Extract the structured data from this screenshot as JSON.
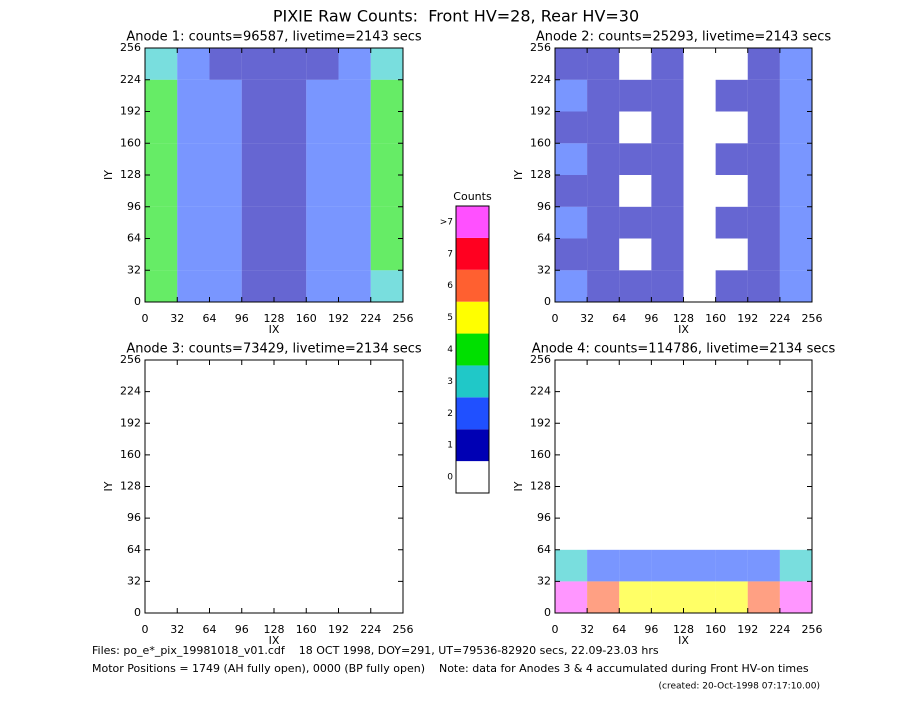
{
  "title": "PIXIE Raw Counts:  Front HV=28, Rear HV=30",
  "chart_data": [
    {
      "type": "heatmap",
      "title": "Anode 1: counts=96587, livetime=2143 secs",
      "xlabel": "IX",
      "ylabel": "IY",
      "xlim": [
        0,
        256
      ],
      "ylim": [
        0,
        256
      ],
      "xticks": [
        0,
        32,
        64,
        96,
        128,
        160,
        192,
        224,
        256
      ],
      "yticks": [
        0,
        32,
        64,
        96,
        128,
        160,
        192,
        224,
        256
      ],
      "z": [
        [
          4,
          2,
          2,
          1,
          1,
          2,
          2,
          3
        ],
        [
          4,
          2,
          2,
          1,
          1,
          2,
          2,
          4
        ],
        [
          4,
          2,
          2,
          1,
          1,
          2,
          2,
          4
        ],
        [
          4,
          2,
          2,
          1,
          1,
          2,
          2,
          4
        ],
        [
          4,
          2,
          2,
          1,
          1,
          2,
          2,
          4
        ],
        [
          4,
          2,
          2,
          1,
          1,
          2,
          2,
          4
        ],
        [
          4,
          2,
          2,
          1,
          1,
          2,
          2,
          4
        ],
        [
          3,
          2,
          1,
          1,
          1,
          1,
          2,
          3
        ]
      ]
    },
    {
      "type": "heatmap",
      "title": "Anode 2: counts=25293, livetime=2143 secs",
      "xlabel": "IX",
      "ylabel": "IY",
      "xlim": [
        0,
        256
      ],
      "ylim": [
        0,
        256
      ],
      "xticks": [
        0,
        32,
        64,
        96,
        128,
        160,
        192,
        224,
        256
      ],
      "yticks": [
        0,
        32,
        64,
        96,
        128,
        160,
        192,
        224,
        256
      ],
      "z": [
        [
          2,
          1,
          1,
          1,
          0,
          1,
          1,
          2
        ],
        [
          1,
          1,
          0,
          1,
          0,
          0,
          1,
          2
        ],
        [
          2,
          1,
          1,
          1,
          0,
          1,
          1,
          2
        ],
        [
          1,
          1,
          0,
          1,
          0,
          0,
          1,
          2
        ],
        [
          2,
          1,
          1,
          1,
          0,
          1,
          1,
          2
        ],
        [
          1,
          1,
          0,
          1,
          0,
          0,
          1,
          2
        ],
        [
          2,
          1,
          1,
          1,
          0,
          1,
          1,
          2
        ],
        [
          1,
          1,
          0,
          1,
          0,
          0,
          1,
          2
        ]
      ]
    },
    {
      "type": "heatmap",
      "title": "Anode 3: counts=73429, livetime=2134 secs",
      "xlabel": "IX",
      "ylabel": "IY",
      "xlim": [
        0,
        256
      ],
      "ylim": [
        0,
        256
      ],
      "xticks": [
        0,
        32,
        64,
        96,
        128,
        160,
        192,
        224,
        256
      ],
      "yticks": [
        0,
        32,
        64,
        96,
        128,
        160,
        192,
        224,
        256
      ],
      "z": [
        [
          0,
          0,
          0,
          0,
          0,
          0,
          0,
          0
        ],
        [
          0,
          0,
          0,
          0,
          0,
          0,
          0,
          0
        ],
        [
          0,
          0,
          0,
          0,
          0,
          0,
          0,
          0
        ],
        [
          0,
          0,
          0,
          0,
          0,
          0,
          0,
          0
        ],
        [
          0,
          0,
          0,
          0,
          0,
          0,
          0,
          0
        ],
        [
          0,
          0,
          0,
          0,
          0,
          0,
          0,
          0
        ],
        [
          0,
          0,
          0,
          0,
          0,
          0,
          0,
          0
        ],
        [
          0,
          0,
          0,
          0,
          0,
          0,
          0,
          0
        ]
      ]
    },
    {
      "type": "heatmap",
      "title": "Anode 4: counts=114786, livetime=2134 secs",
      "xlabel": "IX",
      "ylabel": "IY",
      "xlim": [
        0,
        256
      ],
      "ylim": [
        0,
        256
      ],
      "xticks": [
        0,
        32,
        64,
        96,
        128,
        160,
        192,
        224,
        256
      ],
      "yticks": [
        0,
        32,
        64,
        96,
        128,
        160,
        192,
        224,
        256
      ],
      "z": [
        [
          8,
          6,
          5,
          5,
          5,
          5,
          6,
          8
        ],
        [
          3,
          2,
          2,
          2,
          2,
          2,
          2,
          3
        ],
        [
          0,
          0,
          0,
          0,
          0,
          0,
          0,
          0
        ],
        [
          0,
          0,
          0,
          0,
          0,
          0,
          0,
          0
        ],
        [
          0,
          0,
          0,
          0,
          0,
          0,
          0,
          0
        ],
        [
          0,
          0,
          0,
          0,
          0,
          0,
          0,
          0
        ],
        [
          0,
          0,
          0,
          0,
          0,
          0,
          0,
          0
        ],
        [
          0,
          0,
          0,
          0,
          0,
          0,
          0,
          0
        ]
      ]
    }
  ],
  "colorbar": {
    "title": "Counts",
    "ticks": [
      0,
      1,
      2,
      3,
      4,
      5,
      6,
      7,
      {
        "value": 8,
        "label": ">7"
      }
    ],
    "colors": [
      "#ffffff",
      "#0000b4",
      "#2050ff",
      "#20c8c8",
      "#00e000",
      "#ffff00",
      "#ff6030",
      "#ff0020",
      "#ff50ff"
    ]
  },
  "footer": [
    "Files: po_e*_pix_19981018_v01.cdf    18 OCT 1998, DOY=291, UT=79536-82920 secs, 22.09-23.03 hrs",
    "Motor Positions = 1749 (AH fully open), 0000 (BP fully open)    Note: data for Anodes 3 & 4 accumulated during Front HV-on times",
    "(created: 20-Oct-1998 07:17:10.00)"
  ]
}
